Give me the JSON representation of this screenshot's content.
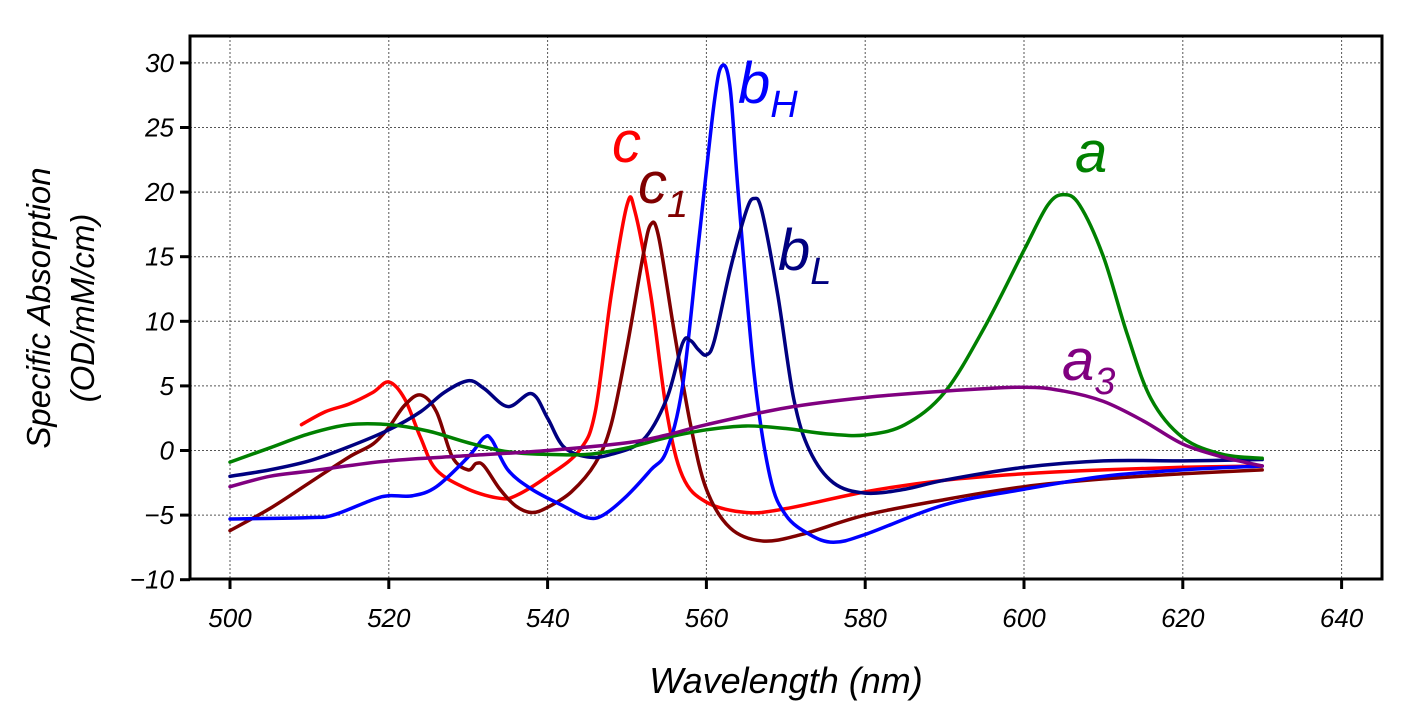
{
  "chart_data": {
    "type": "line",
    "title": "",
    "xlabel": "Wavelength (nm)",
    "ylabel_lines": [
      "Specific Absorption",
      "(OD/mM/cm)"
    ],
    "xlim": [
      495,
      645
    ],
    "ylim": [
      -10,
      32
    ],
    "xticks": [
      500,
      520,
      540,
      560,
      580,
      600,
      620,
      640
    ],
    "yticks": [
      -10,
      -5,
      0,
      5,
      10,
      15,
      20,
      25,
      30
    ],
    "ytick_labels": [
      "−10",
      "−5",
      "0",
      "5",
      "10",
      "15",
      "20",
      "25",
      "30"
    ],
    "grid": true,
    "legend": "none (inline curve labels)",
    "series": [
      {
        "name": "c",
        "label": "c",
        "sub": "",
        "color": "#ff0000",
        "x": [
          509,
          512,
          515,
          518,
          520,
          522,
          524,
          526,
          530,
          534,
          536,
          540,
          544,
          546,
          548,
          550,
          551,
          553,
          555,
          557,
          560,
          565,
          570,
          580,
          590,
          600,
          610,
          620,
          630
        ],
        "y": [
          2,
          3,
          3.6,
          4.5,
          5.3,
          4,
          1,
          -1.5,
          -3,
          -3.7,
          -3.5,
          -2,
          0,
          3,
          12,
          19,
          18.5,
          12,
          3,
          -2,
          -4,
          -4.8,
          -4.5,
          -3.2,
          -2.3,
          -1.8,
          -1.5,
          -1.3,
          -1.2
        ]
      },
      {
        "name": "c1",
        "label": "c",
        "sub": "1",
        "color": "#800000",
        "x": [
          500,
          505,
          510,
          515,
          518,
          520,
          522,
          524,
          526,
          528,
          530,
          531,
          532,
          534,
          536,
          538,
          540,
          543,
          546,
          548,
          550,
          552,
          553,
          554,
          556,
          558,
          560,
          563,
          567,
          572,
          580,
          590,
          600,
          610,
          620,
          630
        ],
        "y": [
          -6.2,
          -4.5,
          -2.5,
          -0.5,
          0.5,
          1.8,
          3.5,
          4.3,
          3,
          -0.5,
          -1.5,
          -1,
          -1.2,
          -3,
          -4.3,
          -4.8,
          -4.4,
          -3.2,
          -1,
          2,
          8,
          15,
          17.5,
          16.5,
          9,
          2,
          -3,
          -6,
          -7,
          -6.5,
          -5,
          -3.8,
          -2.8,
          -2.2,
          -1.8,
          -1.5
        ]
      },
      {
        "name": "bH",
        "label": "b",
        "sub": "H",
        "color": "#0000ff",
        "x": [
          500,
          510,
          513,
          518,
          520,
          523,
          526,
          530,
          532,
          533,
          535,
          538,
          542,
          545,
          547,
          550,
          553,
          555,
          557,
          559,
          561,
          562,
          563,
          564,
          566,
          568,
          570,
          573,
          576,
          580,
          590,
          600,
          610,
          620,
          630
        ],
        "y": [
          -5.3,
          -5.2,
          -5,
          -3.8,
          -3.5,
          -3.5,
          -2.8,
          -0.5,
          1,
          0.8,
          -1.5,
          -3,
          -4.3,
          -5.2,
          -5,
          -3.5,
          -1.5,
          0,
          5,
          16,
          27,
          29.8,
          28,
          20,
          6,
          -2,
          -5,
          -6.5,
          -7.1,
          -6.5,
          -4.2,
          -3,
          -2,
          -1.5,
          -1.2
        ]
      },
      {
        "name": "bL",
        "label": "b",
        "sub": "L",
        "color": "#000080",
        "x": [
          500,
          505,
          510,
          515,
          520,
          524,
          527,
          530,
          532,
          535,
          538,
          540,
          542,
          545,
          548,
          552,
          555,
          557,
          558,
          559,
          560,
          561,
          563,
          565,
          566,
          567,
          569,
          571,
          573,
          576,
          580,
          585,
          590,
          600,
          610,
          620,
          630
        ],
        "y": [
          -2,
          -1.5,
          -0.8,
          0.3,
          1.6,
          3,
          4.5,
          5.4,
          4.8,
          3.4,
          4.4,
          2.5,
          0.3,
          -0.5,
          -0.3,
          0.8,
          4,
          8.3,
          8.5,
          7.8,
          7.4,
          8.5,
          14,
          18.5,
          19.5,
          18.5,
          12,
          4,
          0,
          -2.5,
          -3.3,
          -3,
          -2.3,
          -1.3,
          -0.8,
          -0.8,
          -0.7
        ]
      },
      {
        "name": "a",
        "label": "a",
        "sub": "",
        "color": "#008000",
        "x": [
          500,
          505,
          510,
          515,
          520,
          525,
          530,
          535,
          540,
          545,
          550,
          555,
          560,
          565,
          570,
          575,
          580,
          585,
          590,
          595,
          600,
          603,
          605,
          607,
          610,
          613,
          616,
          620,
          625,
          630
        ],
        "y": [
          -0.9,
          0.2,
          1.3,
          2,
          2,
          1.5,
          0.6,
          -0.1,
          -0.3,
          -0.3,
          0.2,
          1,
          1.6,
          1.9,
          1.7,
          1.3,
          1.2,
          2,
          4.5,
          9.5,
          15.5,
          19,
          19.8,
          19,
          15,
          9,
          4,
          1,
          -0.3,
          -0.6
        ]
      },
      {
        "name": "a3",
        "label": "a",
        "sub": "3",
        "color": "#800080",
        "x": [
          500,
          505,
          510,
          520,
          530,
          540,
          550,
          555,
          560,
          570,
          580,
          590,
          600,
          605,
          610,
          615,
          620,
          625,
          630
        ],
        "y": [
          -2.8,
          -2,
          -1.6,
          -0.8,
          -0.4,
          0,
          0.6,
          1.2,
          2,
          3.3,
          4.1,
          4.6,
          4.9,
          4.6,
          3.8,
          2.3,
          0.5,
          -0.5,
          -1.2
        ]
      }
    ]
  }
}
